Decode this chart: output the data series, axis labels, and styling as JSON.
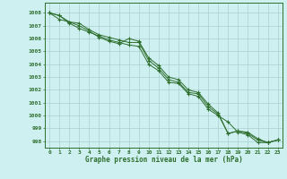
{
  "title": "Graphe pression niveau de la mer (hPa)",
  "bg_color": "#cff0f0",
  "grid_color": "#a8d0d0",
  "line_color": "#2d6e2d",
  "marker_color": "#2d6e2d",
  "xlim": [
    -0.5,
    23.5
  ],
  "ylim": [
    997.5,
    1008.8
  ],
  "yticks": [
    998,
    999,
    1000,
    1001,
    1002,
    1003,
    1004,
    1005,
    1006,
    1007,
    1008
  ],
  "xticks": [
    0,
    1,
    2,
    3,
    4,
    5,
    6,
    7,
    8,
    9,
    10,
    11,
    12,
    13,
    14,
    15,
    16,
    17,
    18,
    19,
    20,
    21,
    22,
    23
  ],
  "series1": [
    1008.0,
    1007.8,
    1007.2,
    1006.8,
    1006.5,
    1006.2,
    1005.9,
    1005.7,
    1005.5,
    1005.4,
    1004.0,
    1003.5,
    1002.6,
    1002.5,
    1001.7,
    1001.5,
    1000.5,
    1000.0,
    999.5,
    998.7,
    998.5,
    997.9,
    997.9,
    998.1
  ],
  "series2": [
    1008.0,
    1007.8,
    1007.3,
    1007.2,
    1006.7,
    1006.3,
    1006.1,
    1005.9,
    1005.7,
    1005.7,
    1004.3,
    1003.7,
    1002.8,
    1002.6,
    1001.8,
    1001.7,
    1000.7,
    1000.1,
    998.6,
    998.8,
    998.6,
    998.1,
    997.9,
    998.1
  ],
  "series3": [
    1008.0,
    1007.5,
    1007.3,
    1007.0,
    1006.6,
    1006.1,
    1005.8,
    1005.6,
    1006.0,
    1005.8,
    1004.5,
    1003.9,
    1003.0,
    1002.8,
    1002.0,
    1001.8,
    1000.9,
    1000.2,
    998.6,
    998.8,
    998.7,
    998.2,
    997.9,
    998.1
  ]
}
